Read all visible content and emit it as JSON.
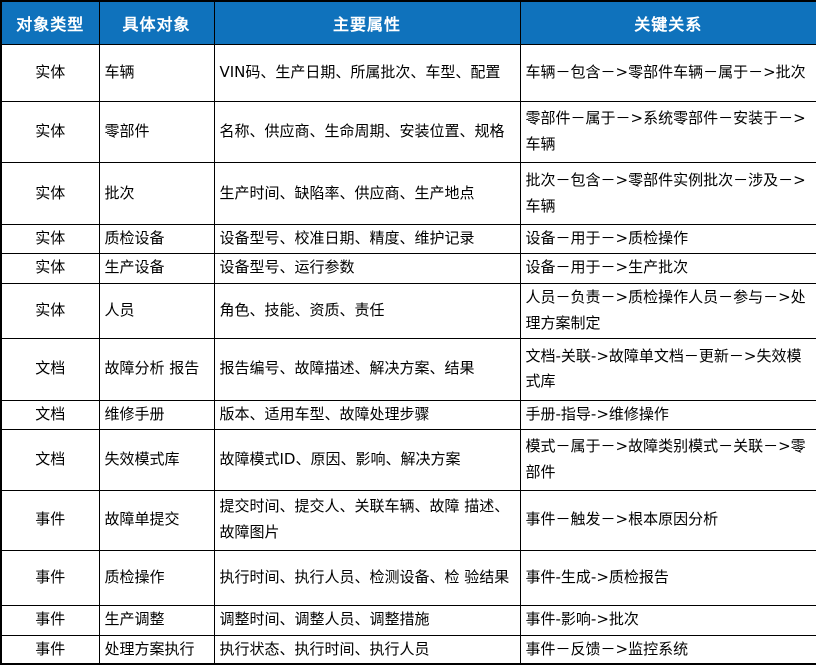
{
  "colors": {
    "header_bg": "#0F72BC",
    "header_text": "#FFFFFF",
    "border_color": "#000000",
    "body_text": "#000000",
    "row_bg": "#FFFFFF"
  },
  "table": {
    "headers": [
      "对象类型",
      "具体对象",
      "主要属性",
      "关键关系"
    ],
    "rows": [
      {
        "type": "实体",
        "object": "车辆",
        "attributes": "VIN码、生产日期、所属批次、车型、配置",
        "relations": "车辆－包含－>零部件车辆－属于－>批次"
      },
      {
        "type": "实体",
        "object": "零部件",
        "attributes": "名称、供应商、生命周期、安装位置、规格",
        "relations": "零部件－属于－>系统零部件－安装于－>车辆"
      },
      {
        "type": "实体",
        "object": "批次",
        "attributes": "生产时间、缺陷率、供应商、生产地点",
        "relations": "批次－包含－>零部件实例批次－涉及－>车辆"
      },
      {
        "type": "实体",
        "object": "质检设备",
        "attributes": "设备型号、校准日期、精度、维护记录",
        "relations": "设备－用于－>质检操作"
      },
      {
        "type": "实体",
        "object": "生产设备",
        "attributes": "设备型号、运行参数",
        "relations": "设备－用于－>生产批次"
      },
      {
        "type": "实体",
        "object": "人员",
        "attributes": "角色、技能、资质、责任",
        "relations": "人员－负责－>质检操作人员－参与－>处理方案制定"
      },
      {
        "type": "文档",
        "object": "故障分析 报告",
        "attributes": "报告编号、故障描述、解决方案、结果",
        "relations": "文档-关联->故障单文档－更新－>失效模式库"
      },
      {
        "type": "文档",
        "object": "维修手册",
        "attributes": "版本、适用车型、故障处理步骤",
        "relations": "手册-指导->维修操作"
      },
      {
        "type": "文档",
        "object": "失效模式库",
        "attributes": "故障模式ID、原因、影响、解决方案",
        "relations": "模式－属于－>故障类别模式－关联－>零部件"
      },
      {
        "type": "事件",
        "object": "故障单提交",
        "attributes": "提交时间、提交人、关联车辆、故障 描述、故障图片",
        "relations": "事件－触发－>根本原因分析"
      },
      {
        "type": "事件",
        "object": "质检操作",
        "attributes": "执行时间、执行人员、检测设备、检 验结果",
        "relations": "事件-生成->质检报告"
      },
      {
        "type": "事件",
        "object": "生产调整",
        "attributes": "调整时间、调整人员、调整措施",
        "relations": "事件-影响->批次"
      },
      {
        "type": "事件",
        "object": "处理方案执行",
        "attributes": "执行状态、执行时间、执行人员",
        "relations": "事件－反馈－>监控系统"
      }
    ]
  }
}
